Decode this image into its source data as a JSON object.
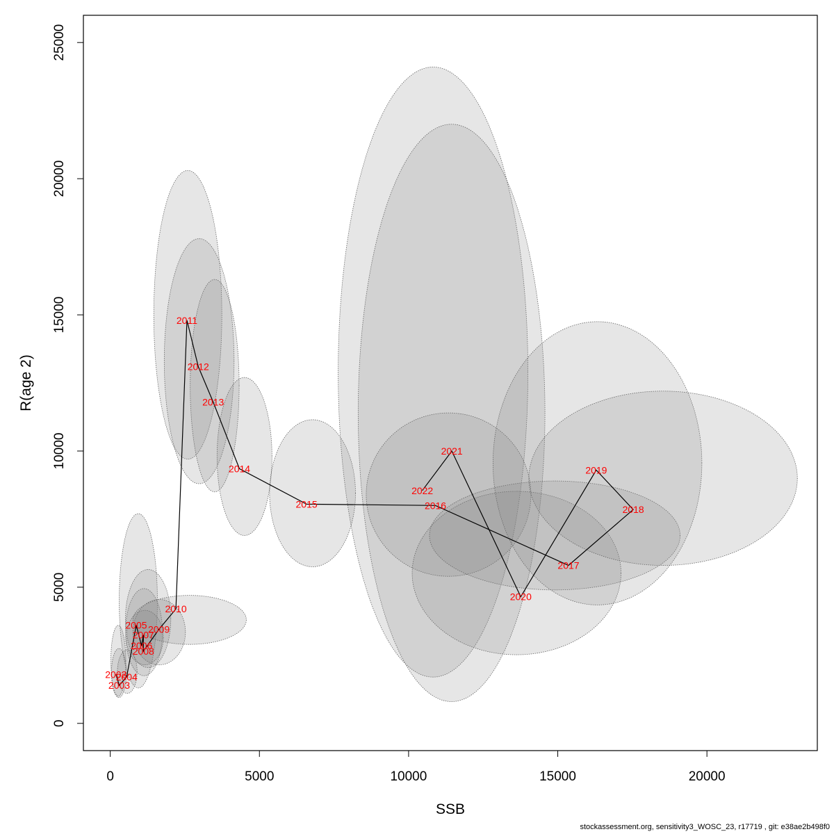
{
  "chart_data": {
    "type": "scatter",
    "xlabel": "SSB",
    "ylabel": "R(age 2)",
    "xlim": [
      -900,
      23700
    ],
    "ylim": [
      -1000,
      26000
    ],
    "xticks": [
      0,
      5000,
      10000,
      15000,
      20000
    ],
    "yticks": [
      0,
      5000,
      10000,
      15000,
      20000,
      25000
    ],
    "grid": false,
    "points": [
      {
        "year": "2002",
        "x": 190,
        "y": 1800
      },
      {
        "year": "2003",
        "x": 300,
        "y": 1400
      },
      {
        "year": "2004",
        "x": 550,
        "y": 1700
      },
      {
        "year": "2005",
        "x": 870,
        "y": 3600
      },
      {
        "year": "2006",
        "x": 1050,
        "y": 2850
      },
      {
        "year": "2007",
        "x": 1110,
        "y": 3250
      },
      {
        "year": "2008",
        "x": 1110,
        "y": 2650
      },
      {
        "year": "2009",
        "x": 1630,
        "y": 3450
      },
      {
        "year": "2010",
        "x": 2200,
        "y": 4200
      },
      {
        "year": "2011",
        "x": 2570,
        "y": 14800
      },
      {
        "year": "2012",
        "x": 2950,
        "y": 13100
      },
      {
        "year": "2013",
        "x": 3450,
        "y": 11800
      },
      {
        "year": "2014",
        "x": 4330,
        "y": 9350
      },
      {
        "year": "2015",
        "x": 6580,
        "y": 8050
      },
      {
        "year": "2016",
        "x": 10900,
        "y": 8000
      },
      {
        "year": "2017",
        "x": 15360,
        "y": 5800
      },
      {
        "year": "2018",
        "x": 17530,
        "y": 7850
      },
      {
        "year": "2019",
        "x": 16290,
        "y": 9300
      },
      {
        "year": "2020",
        "x": 13760,
        "y": 4650
      },
      {
        "year": "2021",
        "x": 11450,
        "y": 10000
      },
      {
        "year": "2022",
        "x": 10460,
        "y": 8550
      }
    ],
    "ellipses": [
      {
        "x": 270,
        "y": 2300,
        "rx": 250,
        "ry": 1300
      },
      {
        "x": 290,
        "y": 1850,
        "rx": 250,
        "ry": 900
      },
      {
        "x": 570,
        "y": 1900,
        "rx": 330,
        "ry": 800
      },
      {
        "x": 940,
        "y": 4500,
        "rx": 640,
        "ry": 3200
      },
      {
        "x": 1130,
        "y": 3350,
        "rx": 620,
        "ry": 1600
      },
      {
        "x": 1270,
        "y": 3850,
        "rx": 760,
        "ry": 1800
      },
      {
        "x": 1160,
        "y": 3150,
        "rx": 620,
        "ry": 1000
      },
      {
        "x": 1640,
        "y": 3350,
        "rx": 880,
        "ry": 1200
      },
      {
        "x": 2660,
        "y": 3800,
        "rx": 1900,
        "ry": 900
      },
      {
        "x": 2600,
        "y": 15000,
        "rx": 1140,
        "ry": 5300
      },
      {
        "x": 2980,
        "y": 13300,
        "rx": 1170,
        "ry": 4500
      },
      {
        "x": 3500,
        "y": 12400,
        "rx": 820,
        "ry": 3900
      },
      {
        "x": 4500,
        "y": 9800,
        "rx": 920,
        "ry": 2900
      },
      {
        "x": 6780,
        "y": 8450,
        "rx": 1440,
        "ry": 2700
      },
      {
        "x": 10820,
        "y": 12900,
        "rx": 3180,
        "ry": 11200
      },
      {
        "x": 11440,
        "y": 11400,
        "rx": 3130,
        "ry": 10600
      },
      {
        "x": 11340,
        "y": 8400,
        "rx": 2760,
        "ry": 3000
      },
      {
        "x": 13620,
        "y": 5520,
        "rx": 3500,
        "ry": 3000
      },
      {
        "x": 14900,
        "y": 6900,
        "rx": 4200,
        "ry": 2000
      },
      {
        "x": 16330,
        "y": 9550,
        "rx": 3500,
        "ry": 5200
      },
      {
        "x": 18530,
        "y": 9000,
        "rx": 4500,
        "ry": 3200
      }
    ]
  },
  "footer": "stockassessment.org, sensitivity3_WOSC_23, r17719 , git: e38ae2b498f0"
}
